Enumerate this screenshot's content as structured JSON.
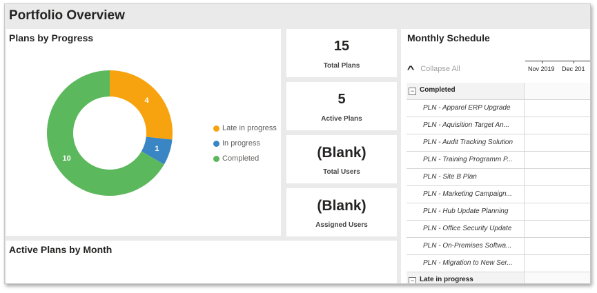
{
  "page": {
    "title": "Portfolio Overview"
  },
  "plans_by_progress": {
    "title": "Plans by Progress",
    "legend": [
      {
        "label": "Late in progress",
        "color": "#F7A30F"
      },
      {
        "label": "In progress",
        "color": "#3A86C4"
      },
      {
        "label": "Completed",
        "color": "#5CB85C"
      }
    ],
    "chart_data": {
      "type": "pie",
      "title": "Plans by Progress",
      "slices": [
        {
          "label": "Late in progress",
          "value": 4,
          "color": "#F7A30F"
        },
        {
          "label": "In progress",
          "value": 1,
          "color": "#3A86C4"
        },
        {
          "label": "Completed",
          "value": 10,
          "color": "#5CB85C"
        }
      ],
      "legend_position": "right"
    }
  },
  "kpis": [
    {
      "value": "15",
      "label": "Total Plans"
    },
    {
      "value": "5",
      "label": "Active Plans"
    },
    {
      "value": "(Blank)",
      "label": "Total Users"
    },
    {
      "value": "(Blank)",
      "label": "Assigned Users"
    }
  ],
  "active_plans_by_month": {
    "title": "Active Plans by Month"
  },
  "schedule": {
    "title": "Monthly Schedule",
    "collapse_label": "Collapse All",
    "months": [
      "Nov 2019",
      "Dec 201"
    ],
    "groups": [
      {
        "label": "Completed",
        "toggle": "−",
        "items": [
          "PLN - Apparel ERP Upgrade",
          "PLN - Aquisition Target An...",
          "PLN - Audit Tracking Solution",
          "PLN - Training Programm P...",
          "PLN - Site B Plan",
          "PLN - Marketing Campaign...",
          "PLN - Hub Update Planning",
          "PLN - Office Security Update",
          "PLN - On-Premises Softwa...",
          "PLN - Migration to New Ser..."
        ]
      },
      {
        "label": "Late in progress",
        "toggle": "−",
        "items": []
      }
    ]
  }
}
